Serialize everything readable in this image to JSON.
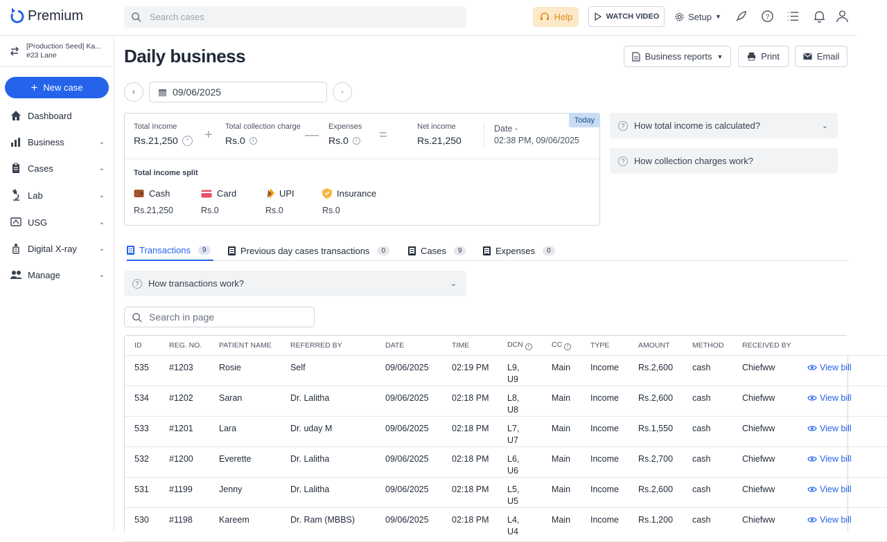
{
  "app": {
    "brand": "Premium",
    "search_placeholder": "Search cases",
    "help_label": "Help",
    "watch_video_label": "WATCH VIDEO",
    "setup_label": "Setup"
  },
  "sidebar": {
    "workspace_line1": "[Production Seed] Ka...",
    "workspace_line2": "#23 Lane",
    "new_case_label": "New case",
    "items": [
      {
        "label": "Dashboard",
        "icon": "home-icon"
      },
      {
        "label": "Business",
        "icon": "bar-chart-icon"
      },
      {
        "label": "Cases",
        "icon": "clipboard-icon"
      },
      {
        "label": "Lab",
        "icon": "microscope-icon"
      },
      {
        "label": "USG",
        "icon": "ultrasound-icon"
      },
      {
        "label": "Digital X-ray",
        "icon": "xray-icon"
      },
      {
        "label": "Manage",
        "icon": "users-icon"
      }
    ]
  },
  "page": {
    "title": "Daily business",
    "business_reports_label": "Business reports",
    "print_label": "Print",
    "email_label": "Email",
    "date_value": "09/06/2025"
  },
  "summary": {
    "today_badge": "Today",
    "total_income_label": "Total Income",
    "total_income_value": "Rs.21,250",
    "collection_charge_label": "Total collection charge",
    "collection_charge_value": "Rs.0",
    "expenses_label": "Expenses",
    "expenses_value": "Rs.0",
    "net_income_label": "Net income",
    "net_income_value": "Rs.21,250",
    "date_label": "Date -",
    "date_value": "02:38 PM, 09/06/2025",
    "split_title": "Total income split",
    "split": [
      {
        "label": "Cash",
        "value": "Rs.21,250",
        "icon": "wallet-icon"
      },
      {
        "label": "Card",
        "value": "Rs.0",
        "icon": "card-icon"
      },
      {
        "label": "UPI",
        "value": "Rs.0",
        "icon": "upi-icon"
      },
      {
        "label": "Insurance",
        "value": "Rs.0",
        "icon": "shield-icon"
      }
    ]
  },
  "faqs": {
    "total_income": "How total income is calculated?",
    "collection_charges": "How collection charges work?",
    "transactions": "How transactions work?"
  },
  "tabs": [
    {
      "label": "Transactions",
      "count": "9"
    },
    {
      "label": "Previous day cases transactions",
      "count": "0"
    },
    {
      "label": "Cases",
      "count": "9"
    },
    {
      "label": "Expenses",
      "count": "0"
    }
  ],
  "table": {
    "search_placeholder": "Search in page",
    "columns": [
      "ID",
      "REG. NO.",
      "PATIENT NAME",
      "REFERRED BY",
      "DATE",
      "TIME",
      "DCN",
      "CC",
      "TYPE",
      "AMOUNT",
      "METHOD",
      "RECEIVED BY",
      ""
    ],
    "view_label": "View bill",
    "rows": [
      {
        "id": "535",
        "reg": "#1203",
        "patient": "Rosie",
        "referred": "Self",
        "date": "09/06/2025",
        "time": "02:19 PM",
        "dcn": "L9, U9",
        "cc": "Main",
        "type": "Income",
        "amount": "Rs.2,600",
        "method": "cash",
        "received": "Chiefww"
      },
      {
        "id": "534",
        "reg": "#1202",
        "patient": "Saran",
        "referred": "Dr. Lalitha",
        "date": "09/06/2025",
        "time": "02:18 PM",
        "dcn": "L8, U8",
        "cc": "Main",
        "type": "Income",
        "amount": "Rs.2,600",
        "method": "cash",
        "received": "Chiefww"
      },
      {
        "id": "533",
        "reg": "#1201",
        "patient": "Lara",
        "referred": "Dr. uday M",
        "date": "09/06/2025",
        "time": "02:18 PM",
        "dcn": "L7, U7",
        "cc": "Main",
        "type": "Income",
        "amount": "Rs.1,550",
        "method": "cash",
        "received": "Chiefww"
      },
      {
        "id": "532",
        "reg": "#1200",
        "patient": "Everette",
        "referred": "Dr. Lalitha",
        "date": "09/06/2025",
        "time": "02:18 PM",
        "dcn": "L6, U6",
        "cc": "Main",
        "type": "Income",
        "amount": "Rs.2,700",
        "method": "cash",
        "received": "Chiefww"
      },
      {
        "id": "531",
        "reg": "#1199",
        "patient": "Jenny",
        "referred": "Dr. Lalitha",
        "date": "09/06/2025",
        "time": "02:18 PM",
        "dcn": "L5, U5",
        "cc": "Main",
        "type": "Income",
        "amount": "Rs.2,600",
        "method": "cash",
        "received": "Chiefww"
      },
      {
        "id": "530",
        "reg": "#1198",
        "patient": "Kareem",
        "referred": "Dr. Ram (MBBS)",
        "date": "09/06/2025",
        "time": "02:18 PM",
        "dcn": "L4, U4",
        "cc": "Main",
        "type": "Income",
        "amount": "Rs.1,200",
        "method": "cash",
        "received": "Chiefww"
      }
    ]
  }
}
